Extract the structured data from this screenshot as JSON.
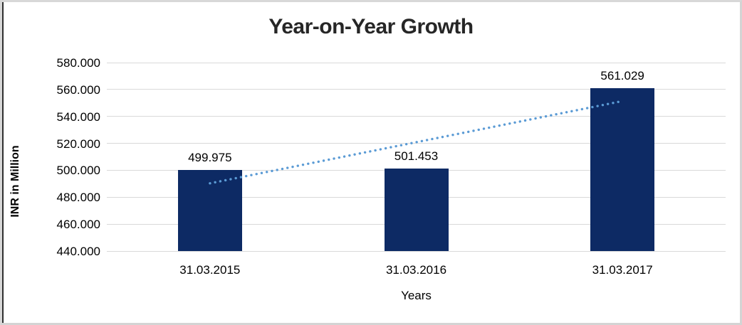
{
  "chart_data": {
    "type": "bar",
    "title": "Year-on-Year Growth",
    "xlabel": "Years",
    "ylabel": "INR in Million",
    "categories": [
      "31.03.2015",
      "31.03.2016",
      "31.03.2017"
    ],
    "values": [
      499.975,
      501.453,
      561.029
    ],
    "data_labels": [
      "499.975",
      "501.453",
      "561.029"
    ],
    "ylim": [
      440,
      580
    ],
    "yticks": [
      {
        "value": 440,
        "label": "440.000"
      },
      {
        "value": 460,
        "label": "460.000"
      },
      {
        "value": 480,
        "label": "480.000"
      },
      {
        "value": 500,
        "label": "500.000"
      },
      {
        "value": 520,
        "label": "520.000"
      },
      {
        "value": 540,
        "label": "540.000"
      },
      {
        "value": 560,
        "label": "560.000"
      },
      {
        "value": 580,
        "label": "580.000"
      }
    ],
    "grid": true,
    "legend": "none",
    "trendline": {
      "style": "dotted",
      "start_value": 490.3,
      "end_value": 551.4
    }
  },
  "colors": {
    "bar": "#0d2a64",
    "trendline": "#5b9bd5",
    "gridline": "#d9d9d9",
    "title_text": "#262626",
    "axis_text": "#000000"
  }
}
